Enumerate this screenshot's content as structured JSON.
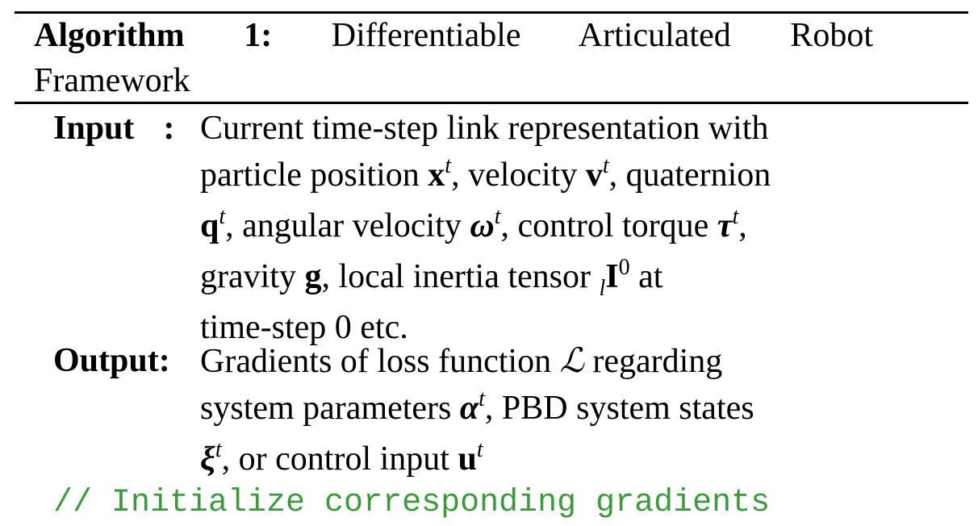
{
  "algorithm": {
    "label": "Algorithm 1:",
    "title": "Differentiable Articulated Robot Framework"
  },
  "input": {
    "label": "Input",
    "sep": ":",
    "line1": "Current time-step link representation with",
    "line2_a": "particle position ",
    "line2_b": ", velocity ",
    "line2_c": ", quaternion",
    "line3_a": ", angular velocity ",
    "line3_b": ", control torque ",
    "line3_c": ",",
    "line4_a": "gravity ",
    "line4_b": ", local inertia tensor ",
    "line4_c": " at",
    "line5": "time-step 0 etc."
  },
  "output": {
    "label": "Output:",
    "line1_a": "Gradients of loss function ",
    "line1_b": " regarding",
    "line2_a": "system parameters ",
    "line2_b": ", PBD system states",
    "line3_a": ", or control input "
  },
  "symbols": {
    "x": "x",
    "v": "v",
    "q": "q",
    "omega": "ω",
    "tau": "τ",
    "g": "g",
    "I": "I",
    "l": "l",
    "zero": "0",
    "t": "t",
    "L": "ℒ",
    "alpha": "α",
    "xi": "ξ",
    "u": "u"
  },
  "comment": "// Initialize corresponding gradients"
}
